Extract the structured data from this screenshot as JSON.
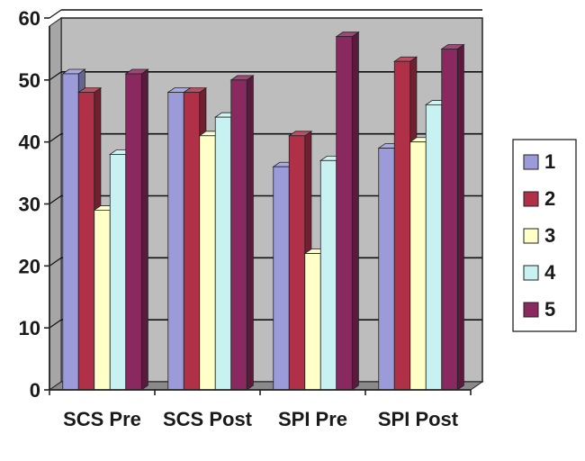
{
  "chart_data": {
    "type": "bar",
    "categories": [
      "SCS Pre",
      "SCS Post",
      "SPI Pre",
      "SPI Post"
    ],
    "series": [
      {
        "name": "1",
        "values": [
          51,
          48,
          36,
          39
        ]
      },
      {
        "name": "2",
        "values": [
          48,
          48,
          41,
          53
        ]
      },
      {
        "name": "3",
        "values": [
          29,
          41,
          22,
          40
        ]
      },
      {
        "name": "4",
        "values": [
          38,
          44,
          37,
          46
        ]
      },
      {
        "name": "5",
        "values": [
          51,
          50,
          57,
          55
        ]
      }
    ],
    "ylim": [
      0,
      60
    ],
    "yticks": [
      "0",
      "10",
      "20",
      "30",
      "40",
      "50",
      "60"
    ],
    "grid": true,
    "three_d": true,
    "legend_position": "right",
    "colors": {
      "series": [
        "#9b9bd9",
        "#b03048",
        "#ffffc8",
        "#c8f2f2",
        "#8a2860"
      ],
      "plot_background": "#bdbdbd",
      "floor": "#8a8a8a",
      "gridline": "#111111"
    }
  }
}
